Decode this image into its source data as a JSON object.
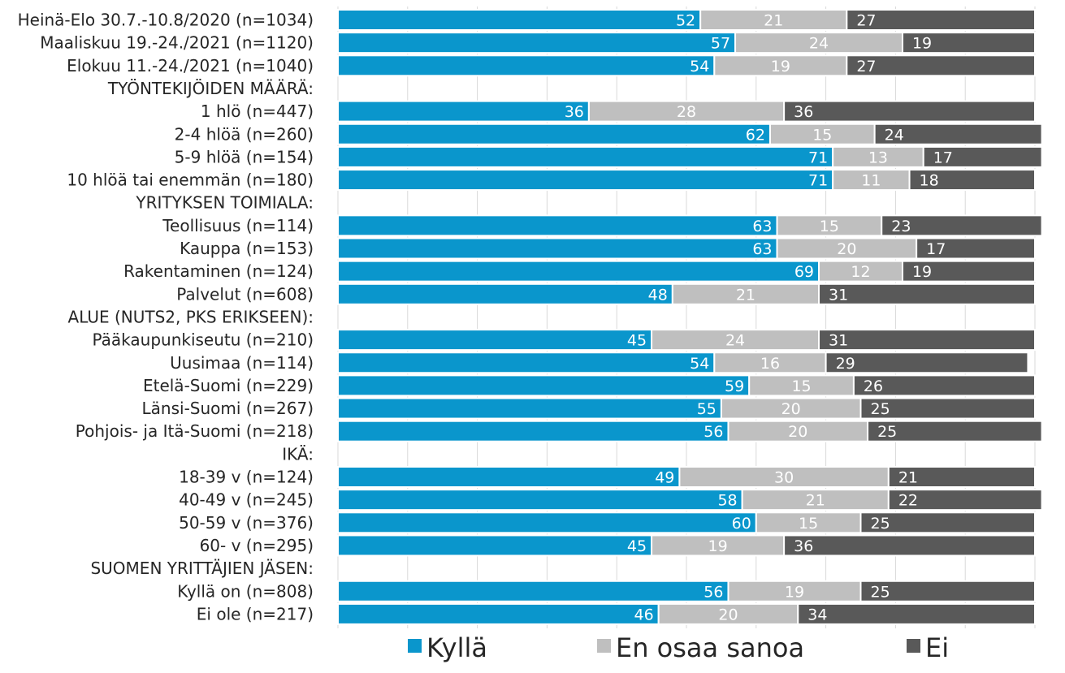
{
  "chart_data": {
    "type": "bar",
    "orientation": "horizontal",
    "stacked": true,
    "percent_stacked": true,
    "xlim": [
      0,
      100
    ],
    "grid": true,
    "legend_position": "bottom",
    "colors": [
      "#0a96cc",
      "#bfbfbf",
      "#595959"
    ],
    "legend": [
      "Kyllä",
      "En osaa sanoa",
      "Ei"
    ],
    "series": [
      {
        "name": "Kyllä"
      },
      {
        "name": "En osaa sanoa"
      },
      {
        "name": "Ei"
      }
    ],
    "rows": [
      {
        "label": "Heinä-Elo 30.7.-10.8/2020 (n=1034)",
        "values": [
          52,
          21,
          27
        ]
      },
      {
        "label": "Maaliskuu 19.-24./2021 (n=1120)",
        "values": [
          57,
          24,
          19
        ]
      },
      {
        "label": "Elokuu 11.-24./2021 (n=1040)",
        "values": [
          54,
          19,
          27
        ]
      },
      {
        "label": "TYÖNTEKIJÖIDEN MÄÄRÄ:",
        "header": true
      },
      {
        "label": "1 hlö (n=447)",
        "values": [
          36,
          28,
          36
        ]
      },
      {
        "label": "2-4 hlöä (n=260)",
        "values": [
          62,
          15,
          24
        ]
      },
      {
        "label": "5-9 hlöä (n=154)",
        "values": [
          71,
          13,
          17
        ]
      },
      {
        "label": "10 hlöä tai enemmän (n=180)",
        "values": [
          71,
          11,
          18
        ]
      },
      {
        "label": "YRITYKSEN TOIMIALA:",
        "header": true
      },
      {
        "label": "Teollisuus (n=114)",
        "values": [
          63,
          15,
          23
        ]
      },
      {
        "label": "Kauppa (n=153)",
        "values": [
          63,
          20,
          17
        ]
      },
      {
        "label": "Rakentaminen (n=124)",
        "values": [
          69,
          12,
          19
        ]
      },
      {
        "label": "Palvelut (n=608)",
        "values": [
          48,
          21,
          31
        ]
      },
      {
        "label": "ALUE (NUTS2, PKS ERIKSEEN):",
        "header": true
      },
      {
        "label": "Pääkaupunkiseutu (n=210)",
        "values": [
          45,
          24,
          31
        ]
      },
      {
        "label": "Uusimaa (n=114)",
        "values": [
          54,
          16,
          29
        ]
      },
      {
        "label": "Etelä-Suomi (n=229)",
        "values": [
          59,
          15,
          26
        ]
      },
      {
        "label": "Länsi-Suomi (n=267)",
        "values": [
          55,
          20,
          25
        ]
      },
      {
        "label": "Pohjois- ja Itä-Suomi (n=218)",
        "values": [
          56,
          20,
          25
        ]
      },
      {
        "label": "IKÄ:",
        "header": true
      },
      {
        "label": "18-39 v (n=124)",
        "values": [
          49,
          30,
          21
        ]
      },
      {
        "label": "40-49 v (n=245)",
        "values": [
          58,
          21,
          22
        ]
      },
      {
        "label": "50-59 v (n=376)",
        "values": [
          60,
          15,
          25
        ]
      },
      {
        "label": "60- v (n=295)",
        "values": [
          45,
          19,
          36
        ]
      },
      {
        "label": "SUOMEN YRITTÄJIEN JÄSEN:",
        "header": true
      },
      {
        "label": "Kyllä on (n=808)",
        "values": [
          56,
          19,
          25
        ]
      },
      {
        "label": "Ei ole (n=217)",
        "values": [
          46,
          20,
          34
        ]
      }
    ]
  }
}
